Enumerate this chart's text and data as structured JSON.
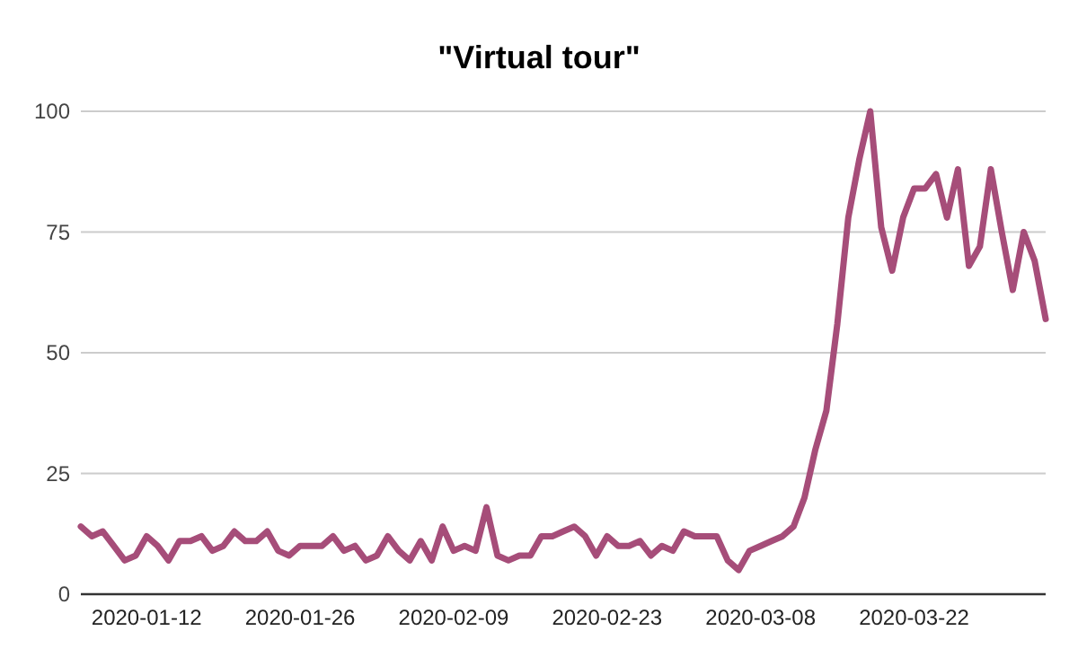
{
  "chart_data": {
    "type": "line",
    "title": "\"Virtual tour\"",
    "categories": [
      null,
      null,
      null,
      null,
      null,
      null,
      "2020-01-12",
      null,
      null,
      null,
      null,
      null,
      null,
      null,
      null,
      null,
      null,
      null,
      null,
      null,
      "2020-01-26",
      null,
      null,
      null,
      null,
      null,
      null,
      null,
      null,
      null,
      null,
      null,
      null,
      null,
      "2020-02-09",
      null,
      null,
      null,
      null,
      null,
      null,
      null,
      null,
      null,
      null,
      null,
      null,
      null,
      "2020-02-23",
      null,
      null,
      null,
      null,
      null,
      null,
      null,
      null,
      null,
      null,
      null,
      null,
      null,
      "2020-03-08",
      null,
      null,
      null,
      null,
      null,
      null,
      null,
      null,
      null,
      null,
      null,
      null,
      null,
      "2020-03-22",
      null,
      null,
      null,
      null,
      null,
      null,
      null,
      null,
      null,
      null,
      null,
      null
    ],
    "series": [
      {
        "color": "#a64d79",
        "values": [
          14,
          12,
          13,
          10,
          7,
          8,
          12,
          10,
          7,
          11,
          11,
          12,
          9,
          10,
          13,
          11,
          11,
          13,
          9,
          8,
          10,
          10,
          10,
          12,
          9,
          10,
          7,
          8,
          12,
          9,
          7,
          11,
          7,
          14,
          9,
          10,
          9,
          18,
          8,
          7,
          8,
          8,
          12,
          12,
          13,
          14,
          12,
          8,
          12,
          10,
          10,
          11,
          8,
          10,
          9,
          13,
          12,
          12,
          12,
          7,
          5,
          9,
          10,
          11,
          12,
          14,
          20,
          30,
          38,
          56,
          78,
          90,
          100,
          76,
          67,
          78,
          84,
          84,
          87,
          78,
          88,
          68,
          72,
          88,
          75,
          63,
          75,
          69,
          57
        ]
      }
    ],
    "ylim": [
      0,
      100
    ],
    "yticks": [
      0,
      25,
      50,
      75,
      100
    ],
    "grid": "y",
    "line_style": "solid"
  }
}
